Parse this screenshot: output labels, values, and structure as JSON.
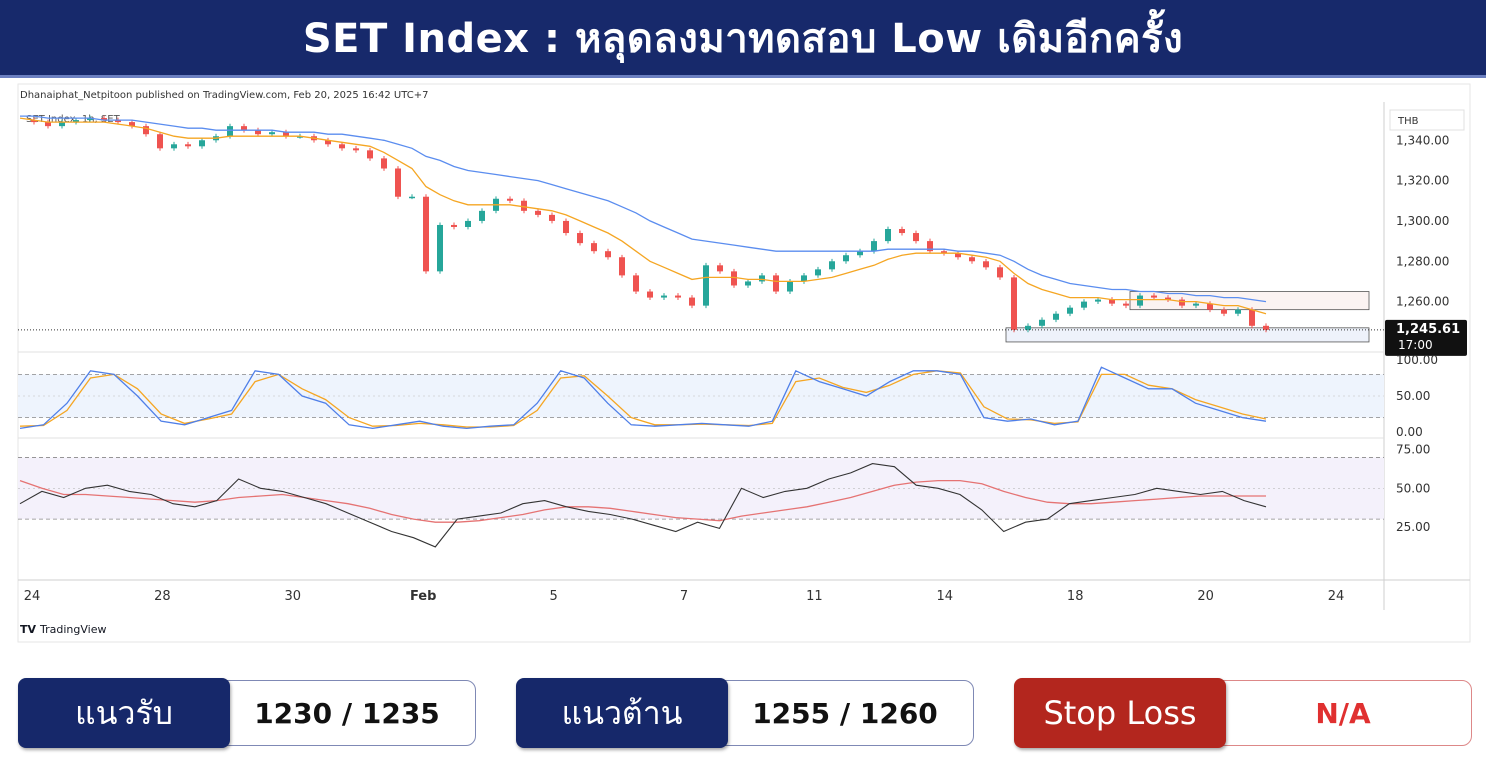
{
  "header": {
    "title": "SET Index : หลุดลงมาทดสอบ Low เดิมอีกครั้ง"
  },
  "chart_meta": {
    "publisher": "Dhanaiphat_Netpitoon published on TradingView.com, Feb 20, 2025 16:42 UTC+7",
    "symbol_label": "SET Index, 1h, SET",
    "currency": "THB",
    "last_price": "1,245.61",
    "last_time": "17:00",
    "brand": "TradingView"
  },
  "colors": {
    "up": "#26a69a",
    "down": "#ef5350",
    "ema_fast": "#f5a623",
    "ema_slow": "#5b8def",
    "stoch_k": "#4f7fe8",
    "stoch_d": "#f5a623",
    "rsi": "#333333",
    "rsi_ma": "#e57373",
    "banner": "#17296b",
    "support_box": "#16286a",
    "stoploss_box": "#b3261e"
  },
  "chart_data": {
    "type": "candlestick",
    "x_tick_labels": [
      "24",
      "28",
      "30",
      "Feb",
      "5",
      "7",
      "11",
      "14",
      "18",
      "20",
      "24"
    ],
    "price_axis": {
      "ticks": [
        "1,340.00",
        "1,320.00",
        "1,300.00",
        "1,280.00",
        "1,260.00"
      ],
      "tick_values": [
        1340,
        1320,
        1300,
        1280,
        1260
      ],
      "ylim": [
        1237,
        1355
      ]
    },
    "price_close_series": [
      1350,
      1349,
      1347,
      1349,
      1350,
      1351,
      1350,
      1349,
      1347,
      1343,
      1336,
      1338,
      1337,
      1340,
      1342,
      1347,
      1345,
      1343,
      1344,
      1342,
      1342,
      1340,
      1338,
      1336,
      1335,
      1331,
      1326,
      1312,
      1312,
      1275,
      1298,
      1297,
      1300,
      1305,
      1311,
      1310,
      1305,
      1303,
      1300,
      1294,
      1289,
      1285,
      1282,
      1273,
      1265,
      1262,
      1263,
      1262,
      1258,
      1278,
      1275,
      1268,
      1270,
      1273,
      1265,
      1270,
      1273,
      1276,
      1280,
      1283,
      1285,
      1290,
      1296,
      1294,
      1290,
      1285,
      1284,
      1282,
      1280,
      1277,
      1272,
      1246,
      1248,
      1251,
      1254,
      1257,
      1260,
      1261,
      1259,
      1258,
      1263,
      1262,
      1261,
      1258,
      1259,
      1256,
      1254,
      1256,
      1248,
      1246
    ],
    "ema_fast_series": [
      1351,
      1350,
      1349,
      1349,
      1349,
      1349,
      1349,
      1348,
      1347,
      1346,
      1344,
      1342,
      1341,
      1341,
      1341,
      1342,
      1342,
      1342,
      1342,
      1342,
      1342,
      1341,
      1340,
      1339,
      1338,
      1337,
      1334,
      1330,
      1326,
      1317,
      1313,
      1310,
      1308,
      1308,
      1308,
      1308,
      1307,
      1306,
      1305,
      1303,
      1300,
      1297,
      1294,
      1290,
      1285,
      1280,
      1277,
      1274,
      1271,
      1272,
      1272,
      1272,
      1271,
      1271,
      1270,
      1270,
      1270,
      1271,
      1272,
      1274,
      1276,
      1278,
      1281,
      1283,
      1284,
      1284,
      1284,
      1284,
      1283,
      1282,
      1280,
      1274,
      1269,
      1266,
      1264,
      1262,
      1262,
      1262,
      1261,
      1261,
      1261,
      1261,
      1261,
      1260,
      1260,
      1259,
      1258,
      1258,
      1256,
      1254
    ],
    "ema_slow_series": [
      1352,
      1352,
      1351,
      1351,
      1351,
      1351,
      1350,
      1350,
      1350,
      1349,
      1348,
      1347,
      1346,
      1346,
      1345,
      1345,
      1345,
      1345,
      1345,
      1344,
      1344,
      1344,
      1343,
      1343,
      1342,
      1341,
      1340,
      1338,
      1336,
      1332,
      1330,
      1327,
      1325,
      1324,
      1323,
      1322,
      1321,
      1320,
      1318,
      1316,
      1314,
      1312,
      1310,
      1307,
      1304,
      1300,
      1297,
      1294,
      1291,
      1290,
      1289,
      1288,
      1287,
      1286,
      1285,
      1285,
      1285,
      1285,
      1285,
      1285,
      1285,
      1285,
      1286,
      1286,
      1286,
      1286,
      1286,
      1285,
      1285,
      1284,
      1283,
      1280,
      1276,
      1273,
      1271,
      1269,
      1268,
      1267,
      1266,
      1266,
      1265,
      1265,
      1264,
      1264,
      1263,
      1263,
      1262,
      1262,
      1261,
      1260
    ],
    "support_zone": [
      1240,
      1247
    ],
    "resistance_zone": [
      1256,
      1265
    ],
    "stoch_axis": {
      "ticks": [
        "100.00",
        "50.00",
        "0.00"
      ],
      "tick_values": [
        100,
        50,
        0
      ],
      "levels": [
        80,
        20
      ]
    },
    "stoch_k_series": [
      5,
      10,
      40,
      85,
      80,
      50,
      15,
      10,
      20,
      30,
      85,
      80,
      50,
      40,
      10,
      5,
      10,
      15,
      8,
      5,
      8,
      10,
      40,
      85,
      75,
      40,
      10,
      8,
      10,
      12,
      10,
      8,
      15,
      85,
      70,
      60,
      50,
      70,
      85,
      85,
      80,
      20,
      15,
      18,
      10,
      15,
      90,
      75,
      60,
      60,
      40,
      30,
      20,
      15
    ],
    "stoch_d_series": [
      8,
      9,
      30,
      75,
      80,
      60,
      25,
      12,
      18,
      25,
      70,
      80,
      60,
      45,
      20,
      8,
      9,
      12,
      10,
      7,
      7,
      9,
      30,
      75,
      78,
      50,
      20,
      10,
      10,
      11,
      10,
      9,
      12,
      70,
      75,
      62,
      55,
      65,
      80,
      85,
      82,
      35,
      18,
      17,
      12,
      14,
      80,
      80,
      65,
      60,
      45,
      35,
      25,
      18
    ],
    "rsi_axis": {
      "ticks": [
        "75.00",
        "50.00",
        "25.00"
      ],
      "tick_values": [
        75,
        50,
        25
      ],
      "levels": [
        70,
        30
      ]
    },
    "rsi_series": [
      40,
      48,
      44,
      50,
      52,
      48,
      46,
      40,
      38,
      42,
      56,
      50,
      48,
      44,
      40,
      34,
      28,
      22,
      18,
      12,
      30,
      32,
      34,
      40,
      42,
      38,
      35,
      33,
      30,
      26,
      22,
      28,
      24,
      50,
      44,
      48,
      50,
      56,
      60,
      66,
      64,
      52,
      50,
      46,
      36,
      22,
      28,
      30,
      40,
      42,
      44,
      46,
      50,
      48,
      46,
      48,
      42,
      38
    ],
    "rsi_ma_series": [
      55,
      50,
      46,
      46,
      45,
      44,
      43,
      42,
      41,
      42,
      44,
      45,
      46,
      44,
      42,
      40,
      37,
      33,
      30,
      28,
      28,
      29,
      31,
      33,
      36,
      38,
      38,
      37,
      35,
      33,
      31,
      30,
      29,
      32,
      34,
      36,
      38,
      41,
      44,
      48,
      52,
      54,
      55,
      55,
      53,
      48,
      44,
      41,
      40,
      40,
      41,
      42,
      43,
      44,
      45,
      45,
      45,
      45
    ]
  },
  "levels": {
    "support_label": "แนวรับ",
    "support_value": "1230 / 1235",
    "resistance_label": "แนวต้าน",
    "resistance_value": "1255 / 1260",
    "stoploss_label": "Stop Loss",
    "stoploss_value": "N/A"
  }
}
